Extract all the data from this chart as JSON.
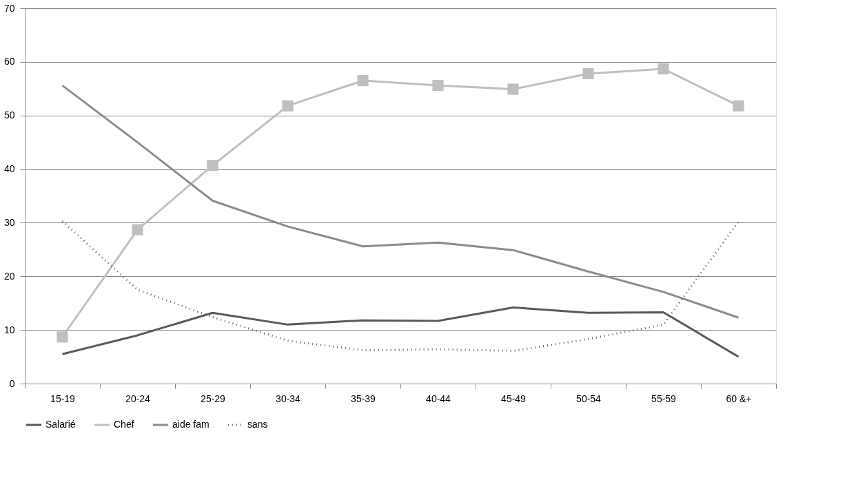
{
  "chart_data": {
    "type": "line",
    "categories": [
      "15-19",
      "20-24",
      "25-29",
      "30-34",
      "35-39",
      "40-44",
      "45-49",
      "50-54",
      "55-59",
      "60 &+"
    ],
    "series": [
      {
        "name": "Salarié",
        "color": "#595959",
        "line_style": "solid",
        "values": [
          5.5,
          9,
          13.2,
          11,
          11.8,
          11.7,
          14.2,
          13.2,
          13.3,
          5
        ]
      },
      {
        "name": "Chef",
        "color": "#bfbfbf",
        "line_style": "solid",
        "marker": "square",
        "values": [
          8.7,
          28.7,
          40.7,
          51.8,
          56.5,
          55.6,
          54.9,
          57.8,
          58.7,
          51.8
        ]
      },
      {
        "name": "aide fam",
        "color": "#8c8c8c",
        "line_style": "solid",
        "values": [
          55.6,
          45,
          34.1,
          29.3,
          25.6,
          26.3,
          24.9,
          20.9,
          17.1,
          12.3
        ]
      },
      {
        "name": "sans",
        "color": "#595959",
        "line_style": "dotted",
        "values": [
          30.3,
          17.5,
          12.4,
          8,
          6.2,
          6.4,
          6.1,
          8.3,
          11,
          30.2
        ]
      }
    ],
    "ylim": [
      0,
      70
    ],
    "yticks": [
      0,
      10,
      20,
      30,
      40,
      50,
      60,
      70
    ],
    "grid": "y",
    "legend": "bottom"
  }
}
